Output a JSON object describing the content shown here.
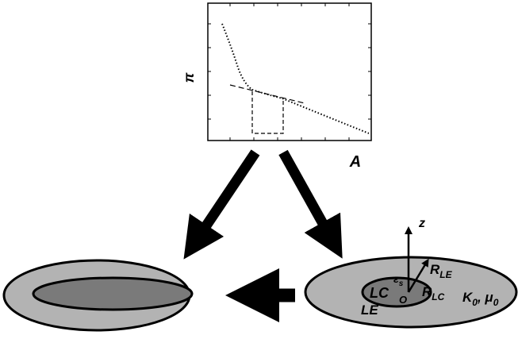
{
  "isotherm_plot": {
    "y_label": "π",
    "x_label": "A"
  },
  "right_domain": {
    "z_axis": "z",
    "r_le": {
      "main": "R",
      "sub": "LE"
    },
    "lc": "LC",
    "epsilon": {
      "main": "ε",
      "sub": "s"
    },
    "origin": "O",
    "r_lc": {
      "main": "R",
      "sub": "LC"
    },
    "moduli": {
      "k": "K",
      "k_sub": "0",
      "sep": ", ",
      "mu": "μ",
      "mu_sub": "0"
    },
    "le": "LE"
  }
}
